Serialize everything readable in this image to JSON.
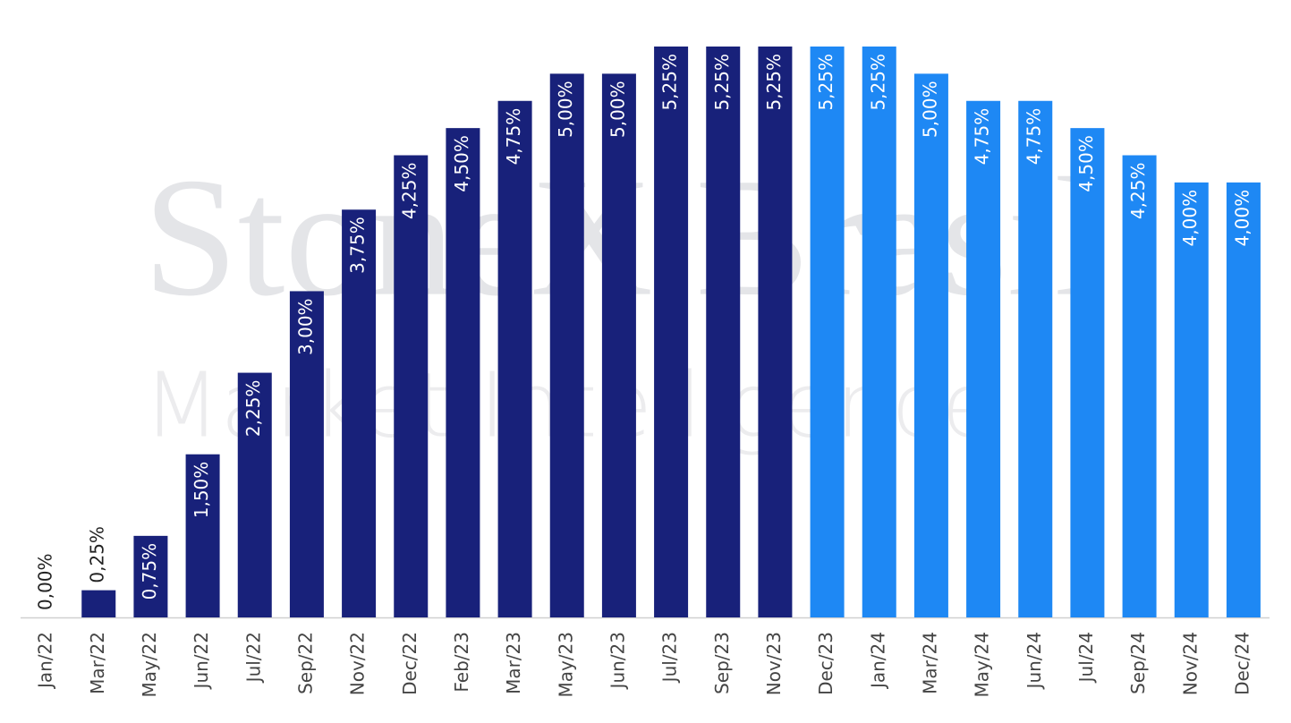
{
  "chart_data": {
    "type": "bar",
    "watermark": [
      "StoneX Brasil",
      "Market Intelligence"
    ],
    "categories": [
      "Jan/22",
      "Mar/22",
      "May/22",
      "Jun/22",
      "Jul/22",
      "Sep/22",
      "Nov/22",
      "Dec/22",
      "Feb/23",
      "Mar/23",
      "May/23",
      "Jun/23",
      "Jul/23",
      "Sep/23",
      "Nov/23",
      "Dec/23",
      "Jan/24",
      "Mar/24",
      "May/24",
      "Jun/24",
      "Jul/24",
      "Sep/24",
      "Nov/24",
      "Dec/24"
    ],
    "values": [
      0,
      0.25,
      0.75,
      1.5,
      2.25,
      3,
      3.75,
      4.25,
      4.5,
      4.75,
      5,
      5,
      5.25,
      5.25,
      5.25,
      5.25,
      5.25,
      5,
      4.75,
      4.75,
      4.5,
      4.25,
      4,
      4
    ],
    "value_labels": [
      "0,00%",
      "0,25%",
      "0,75%",
      "1,50%",
      "2,25%",
      "3,00%",
      "3,75%",
      "4,25%",
      "4,50%",
      "4,75%",
      "5,00%",
      "5,00%",
      "5,25%",
      "5,25%",
      "5,25%",
      "5,25%",
      "5,25%",
      "5,00%",
      "4,75%",
      "4,75%",
      "4,50%",
      "4,25%",
      "4,00%",
      "4,00%"
    ],
    "colors": [
      "#18217a",
      "#18217a",
      "#18217a",
      "#18217a",
      "#18217a",
      "#18217a",
      "#18217a",
      "#18217a",
      "#18217a",
      "#18217a",
      "#18217a",
      "#18217a",
      "#18217a",
      "#18217a",
      "#18217a",
      "#1e88f4",
      "#1e88f4",
      "#1e88f4",
      "#1e88f4",
      "#1e88f4",
      "#1e88f4",
      "#1e88f4",
      "#1e88f4",
      "#1e88f4"
    ],
    "ylim": [
      0,
      5.25
    ]
  }
}
